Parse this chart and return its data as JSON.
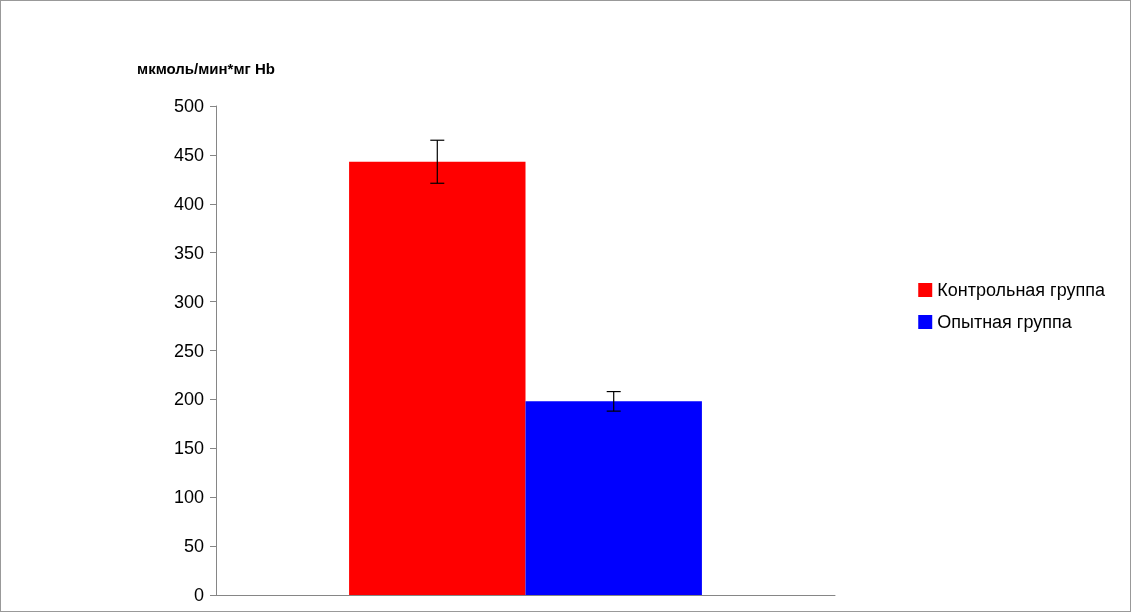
{
  "chart_data": {
    "type": "bar",
    "ylabel": "мкмоль/мин*мг Hb",
    "categories": [
      null
    ],
    "series": [
      {
        "name": "Контрольная группа",
        "color": "#ff0000",
        "values": [
          443
        ],
        "errors": [
          22
        ]
      },
      {
        "name": "Опытная группа",
        "color": "#0000ff",
        "values": [
          198
        ],
        "errors": [
          10
        ]
      }
    ],
    "ylim": [
      0,
      500
    ],
    "yticks": [
      0,
      50,
      100,
      150,
      200,
      250,
      300,
      350,
      400,
      450,
      500
    ],
    "grid": false,
    "legend": "right"
  }
}
